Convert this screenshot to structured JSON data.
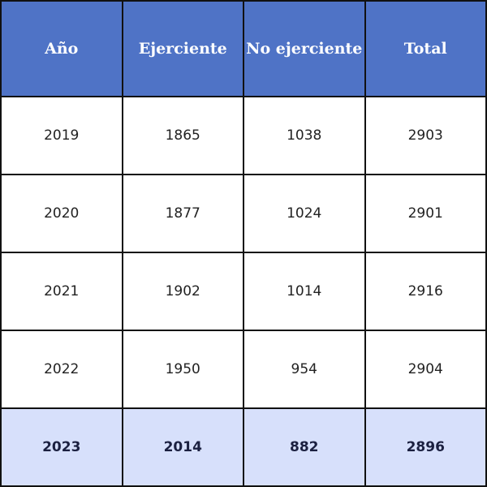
{
  "table": {
    "header": [
      "Año",
      "Ejerciente",
      "No ejerciente",
      "Total"
    ],
    "rows": [
      [
        2019,
        1865,
        1038,
        2903
      ],
      [
        2020,
        1877,
        1024,
        2901
      ],
      [
        2021,
        1902,
        1014,
        2916
      ],
      [
        2022,
        1950,
        954,
        2904
      ],
      [
        2023,
        2014,
        882,
        2896
      ]
    ]
  }
}
